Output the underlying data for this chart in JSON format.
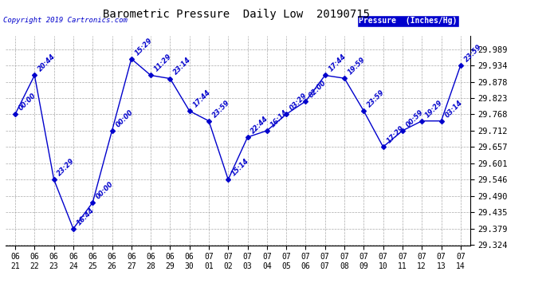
{
  "title": "Barometric Pressure  Daily Low  20190715",
  "copyright": "Copyright 2019 Cartronics.com",
  "legend_label": "Pressure  (Inches/Hg)",
  "x_labels": [
    "06/21",
    "06/22",
    "06/23",
    "06/24",
    "06/25",
    "06/26",
    "06/27",
    "06/28",
    "06/29",
    "06/30",
    "07/01",
    "07/02",
    "07/03",
    "07/04",
    "07/05",
    "07/06",
    "07/07",
    "07/08",
    "07/09",
    "07/10",
    "07/11",
    "07/12",
    "07/13",
    "07/14"
  ],
  "y_values": [
    29.768,
    29.9,
    29.546,
    29.379,
    29.468,
    29.712,
    29.956,
    29.9,
    29.889,
    29.779,
    29.745,
    29.546,
    29.69,
    29.712,
    29.768,
    29.812,
    29.9,
    29.89,
    29.779,
    29.657,
    29.712,
    29.745,
    29.745,
    29.934
  ],
  "point_labels": [
    "00:00",
    "20:44",
    "23:29",
    "16:44",
    "00:00",
    "00:00",
    "15:29",
    "11:29",
    "23:14",
    "17:44",
    "23:59",
    "15:14",
    "22:44",
    "16:14",
    "03:29",
    "02:00",
    "17:44",
    "19:59",
    "23:59",
    "17:29",
    "00:59",
    "19:29",
    "03:14",
    "23:59"
  ],
  "ylim_min": 29.324,
  "ylim_max": 29.989,
  "y_ticks": [
    29.324,
    29.379,
    29.435,
    29.49,
    29.546,
    29.601,
    29.657,
    29.712,
    29.768,
    29.823,
    29.878,
    29.934,
    29.989
  ],
  "line_color": "#0000CC",
  "marker_color": "#0000CC",
  "bg_color": "#ffffff",
  "grid_color": "#aaaaaa",
  "title_color": "#000000",
  "label_color": "#0000CC",
  "legend_bg": "#0000CC",
  "legend_text_color": "#ffffff"
}
